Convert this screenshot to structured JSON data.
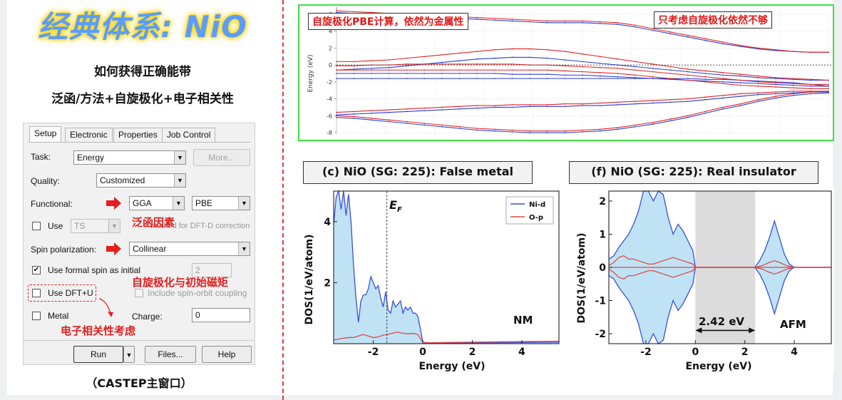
{
  "title": "经典体系: NiO",
  "subtitle1": "如何获得正确能带",
  "subtitle2": "泛函/方法+自旋极化+电子相关性",
  "castep": {
    "tabs": [
      "Setup",
      "Electronic",
      "Properties",
      "Job Control"
    ],
    "task_label": "Task:",
    "task_value": "Energy",
    "more_button": "More...",
    "quality_label": "Quality:",
    "quality_value": "Customized",
    "functional_label": "Functional:",
    "functional_value": "GGA",
    "functional_variant": "PBE",
    "use_label": "Use",
    "use_value": "TS",
    "dftd_text": "method for DFT-D correction",
    "spin_label": "Spin polarization:",
    "spin_value": "Collinear",
    "formal_spin_label": "Use formal spin as initial",
    "formal_spin_value": "2",
    "dftu_label": "Use DFT+U",
    "soc_label": "Include spin-orbit coupling",
    "metal_label": "Metal",
    "charge_label": "Charge:",
    "charge_value": "0",
    "run_button": "Run",
    "files_button": "Files...",
    "help_button": "Help",
    "annot_functional": "泛函因素",
    "annot_spin": "自旋极化与初始磁矩",
    "annot_correlation": "电子相关性考虑",
    "colors": {
      "annotation": "#e02020"
    }
  },
  "caption": "（CASTEP主窗口）",
  "band": {
    "label_left": "自旋极化PBE计算，依然为金属性",
    "label_right": "只考虑自旋极化依然不够",
    "ylabel": "Energy (eV)",
    "yticks": [
      "6",
      "4",
      "2",
      "0",
      "-2",
      "-4",
      "-6",
      "-8"
    ],
    "chart_data": {
      "type": "line",
      "ylabel": "Energy (eV)",
      "ylim": [
        -8.5,
        6.5
      ],
      "x": [
        0,
        1,
        2,
        3,
        4,
        5,
        6,
        7,
        8,
        9,
        10,
        11,
        12,
        13,
        14,
        15,
        16,
        17,
        18,
        19,
        20,
        21,
        22,
        23,
        24,
        25,
        26,
        27,
        28
      ],
      "series": [
        {
          "color": "blue",
          "values": [
            6.2,
            6.1,
            6.0,
            5.9,
            5.8,
            5.7,
            5.6,
            5.5,
            5.4,
            5.3,
            5.2,
            5.1,
            5.0,
            5.0,
            5.0,
            4.9,
            4.8,
            4.5,
            4.1,
            3.7,
            3.3,
            2.9,
            2.5,
            2.2,
            1.9,
            1.7,
            1.6,
            1.5,
            1.5
          ]
        },
        {
          "color": "blue",
          "values": [
            -0.6,
            -0.5,
            -0.4,
            -0.3,
            -0.1,
            0.1,
            0.3,
            0.5,
            0.7,
            0.8,
            0.9,
            0.9,
            0.8,
            0.6,
            0.4,
            0.2,
            0.0,
            -0.2,
            -0.4,
            -0.6,
            -0.8,
            -1.0,
            -1.2,
            -1.3,
            -1.5,
            -1.6,
            -1.7,
            -1.8,
            -1.8
          ]
        },
        {
          "color": "blue",
          "values": [
            -1.0,
            -1.0,
            -1.0,
            -1.0,
            -1.0,
            -1.0,
            -1.0,
            -1.0,
            -1.0,
            -1.0,
            -1.1,
            -1.1,
            -1.1,
            -1.2,
            -1.2,
            -1.3,
            -1.4,
            -1.5,
            -1.6,
            -1.7,
            -1.8,
            -1.9,
            -2.0,
            -2.1,
            -2.2,
            -2.3,
            -2.4,
            -2.5,
            -2.5
          ]
        },
        {
          "color": "blue",
          "values": [
            -1.6,
            -1.6,
            -1.6,
            -1.6,
            -1.6,
            -1.6,
            -1.6,
            -1.6,
            -1.6,
            -1.6,
            -1.6,
            -1.6,
            -1.6,
            -1.6,
            -1.6,
            -1.6,
            -1.6,
            -1.6,
            -1.6,
            -1.6,
            -1.6,
            -1.7,
            -1.7,
            -1.8,
            -1.9,
            -2.0,
            -2.1,
            -2.3,
            -2.5
          ]
        },
        {
          "color": "blue",
          "values": [
            -5.9,
            -5.8,
            -5.7,
            -5.6,
            -5.5,
            -5.4,
            -5.3,
            -5.2,
            -5.1,
            -5.0,
            -5.0,
            -4.9,
            -4.9,
            -4.9,
            -4.8,
            -4.8,
            -4.7,
            -4.6,
            -4.5,
            -4.4,
            -4.3,
            -4.1,
            -3.9,
            -3.7,
            -3.5,
            -3.4,
            -3.3,
            -3.2,
            -3.2
          ]
        },
        {
          "color": "blue",
          "values": [
            -6.2,
            -6.3,
            -6.5,
            -6.7,
            -6.9,
            -7.1,
            -7.3,
            -7.5,
            -7.7,
            -7.8,
            -7.9,
            -8.0,
            -8.0,
            -8.0,
            -7.9,
            -7.8,
            -7.6,
            -7.3,
            -7.0,
            -6.6,
            -6.2,
            -5.7,
            -5.2,
            -4.8,
            -4.3,
            -3.9,
            -3.6,
            -3.4,
            -3.3
          ]
        },
        {
          "color": "red",
          "values": [
            6.4,
            6.3,
            6.2,
            6.1,
            6.0,
            5.9,
            5.8,
            5.7,
            5.6,
            5.5,
            5.4,
            5.3,
            5.2,
            5.2,
            5.2,
            5.1,
            5.0,
            4.7,
            4.3,
            3.9,
            3.5,
            3.1,
            2.7,
            2.3,
            2.0,
            1.8,
            1.6,
            1.5,
            1.5
          ]
        },
        {
          "color": "red",
          "values": [
            0.4,
            0.4,
            0.5,
            0.6,
            0.8,
            1.0,
            1.2,
            1.4,
            1.6,
            1.8,
            1.9,
            1.9,
            1.8,
            1.6,
            1.3,
            1.0,
            0.7,
            0.4,
            0.1,
            -0.2,
            -0.5,
            -0.7,
            -0.9,
            -1.1,
            -1.3,
            -1.5,
            -1.6,
            -1.7,
            -1.8
          ]
        },
        {
          "color": "red",
          "values": [
            -0.1,
            -0.1,
            0.0,
            0.0,
            0.1,
            0.1,
            0.1,
            0.1,
            0.1,
            0.1,
            0.1,
            0.0,
            0.0,
            -0.1,
            -0.2,
            -0.3,
            -0.4,
            -0.6,
            -0.8,
            -1.0,
            -1.2,
            -1.4,
            -1.6,
            -1.8,
            -2.0,
            -2.1,
            -2.2,
            -2.3,
            -2.3
          ]
        },
        {
          "color": "red",
          "values": [
            -0.6,
            -0.6,
            -0.6,
            -0.6,
            -0.6,
            -0.6,
            -0.6,
            -0.6,
            -0.6,
            -0.6,
            -0.6,
            -0.6,
            -0.6,
            -0.7,
            -0.8,
            -0.9,
            -1.0,
            -1.2,
            -1.4,
            -1.6,
            -1.8,
            -2.0,
            -2.2,
            -2.4,
            -2.5,
            -2.6,
            -2.7,
            -2.8,
            -2.8
          ]
        },
        {
          "color": "red",
          "values": [
            -5.6,
            -5.5,
            -5.4,
            -5.3,
            -5.2,
            -5.1,
            -5.0,
            -4.9,
            -4.8,
            -4.8,
            -4.7,
            -4.7,
            -4.7,
            -4.6,
            -4.6,
            -4.5,
            -4.4,
            -4.3,
            -4.2,
            -4.1,
            -4.0,
            -3.8,
            -3.6,
            -3.4,
            -3.3,
            -3.2,
            -3.1,
            -3.1,
            -3.1
          ]
        },
        {
          "color": "red",
          "values": [
            -6.0,
            -6.1,
            -6.3,
            -6.5,
            -6.7,
            -6.9,
            -7.1,
            -7.3,
            -7.5,
            -7.6,
            -7.7,
            -7.8,
            -7.8,
            -7.8,
            -7.7,
            -7.6,
            -7.4,
            -7.1,
            -6.8,
            -6.4,
            -6.0,
            -5.5,
            -5.0,
            -4.6,
            -4.1,
            -3.7,
            -3.4,
            -3.2,
            -3.1
          ]
        }
      ]
    }
  },
  "dos_c": {
    "header": "(c) NiO (SG: 225): False metal",
    "ylabel": "DOS(1/eV/atom)",
    "xlabel": "Energy (eV)",
    "ef_label": "E",
    "ef_sub": "F",
    "tag": "NM",
    "xticks": [
      "-2",
      "0",
      "2",
      "4"
    ],
    "yticks": [
      "2",
      "4"
    ],
    "legend": [
      "Ni-d",
      "O-p"
    ],
    "chart_data": {
      "type": "area",
      "xlabel": "Energy (eV)",
      "ylabel": "DOS(1/eV/atom)",
      "xlim": [
        -3.6,
        5.5
      ],
      "ylim": [
        0,
        5.0
      ],
      "ef": -1.45,
      "series": [
        {
          "name": "Ni-d",
          "color": "#3a4fd8",
          "x": [
            -3.6,
            -3.5,
            -3.4,
            -3.3,
            -3.2,
            -3.1,
            -3.0,
            -2.9,
            -2.8,
            -2.7,
            -2.6,
            -2.5,
            -2.4,
            -2.3,
            -2.2,
            -2.1,
            -2.0,
            -1.9,
            -1.8,
            -1.7,
            -1.6,
            -1.5,
            -1.4,
            -1.3,
            -1.2,
            -1.1,
            -1.0,
            -0.9,
            -0.8,
            -0.7,
            -0.6,
            -0.5,
            -0.4,
            -0.3,
            -0.2,
            -0.1,
            0.0,
            0.1,
            0.5,
            1.0,
            2.0,
            3.0,
            4.0,
            5.5
          ],
          "values": [
            3.9,
            4.8,
            5.0,
            4.4,
            5.0,
            4.2,
            4.9,
            4.0,
            2.6,
            1.5,
            0.7,
            1.4,
            1.6,
            1.6,
            1.8,
            2.2,
            2.0,
            1.8,
            1.9,
            1.5,
            1.2,
            1.7,
            1.1,
            1.0,
            1.4,
            1.2,
            1.3,
            1.4,
            1.0,
            1.2,
            1.1,
            1.2,
            1.0,
            1.0,
            0.9,
            0.5,
            0.05,
            0.02,
            0.02,
            0.02,
            0.03,
            0.03,
            0.04,
            0.05
          ]
        },
        {
          "name": "O-p",
          "color": "#e04848",
          "x": [
            -3.6,
            -3.4,
            -3.2,
            -3.0,
            -2.8,
            -2.6,
            -2.4,
            -2.2,
            -2.0,
            -1.8,
            -1.6,
            -1.4,
            -1.2,
            -1.0,
            -0.8,
            -0.6,
            -0.4,
            -0.2,
            0.0,
            0.2,
            1.0,
            2.0,
            3.0,
            4.0,
            5.5
          ],
          "values": [
            0.12,
            0.15,
            0.18,
            0.2,
            0.2,
            0.25,
            0.3,
            0.25,
            0.2,
            0.22,
            0.28,
            0.3,
            0.35,
            0.38,
            0.34,
            0.32,
            0.34,
            0.3,
            0.05,
            0.03,
            0.04,
            0.05,
            0.06,
            0.07,
            0.08
          ]
        }
      ]
    }
  },
  "dos_f": {
    "header": "(f) NiO (SG: 225): Real insulator",
    "ylabel": "DOS(1/eV/atom)",
    "xlabel": "Energy (eV)",
    "gap_label": "2.42 eV",
    "tag": "AFM",
    "xticks": [
      "-2",
      "0",
      "2",
      "4"
    ],
    "yticks": [
      "2",
      "1",
      "0",
      "-1",
      "-2"
    ],
    "chart_data": {
      "type": "area",
      "xlabel": "Energy (eV)",
      "ylabel": "DOS(1/eV/atom)",
      "xlim": [
        -3.5,
        5.5
      ],
      "ylim": [
        -2.3,
        2.3
      ],
      "gap": [
        0.0,
        2.42
      ],
      "series": [
        {
          "name": "Ni-d",
          "color": "#3a4fd8",
          "x": [
            -3.5,
            -3.3,
            -3.1,
            -2.9,
            -2.7,
            -2.5,
            -2.3,
            -2.1,
            -1.9,
            -1.7,
            -1.5,
            -1.3,
            -1.1,
            -0.9,
            -0.7,
            -0.5,
            -0.3,
            -0.1,
            0.0,
            2.4,
            2.6,
            2.8,
            3.0,
            3.2,
            3.4,
            3.6,
            3.8,
            4.0,
            5.5
          ],
          "values": [
            0.25,
            0.35,
            0.6,
            0.8,
            1.0,
            1.3,
            1.7,
            2.5,
            2.8,
            2.0,
            2.6,
            2.2,
            1.5,
            1.0,
            1.3,
            1.1,
            0.8,
            0.5,
            0.0,
            0.0,
            0.2,
            0.5,
            0.9,
            1.4,
            0.9,
            0.4,
            0.1,
            0.0,
            0.0
          ]
        },
        {
          "name": "O-p",
          "color": "#e04848",
          "x": [
            -3.5,
            -3.3,
            -3.1,
            -2.9,
            -2.7,
            -2.5,
            -2.3,
            -2.1,
            -1.9,
            -1.7,
            -1.5,
            -1.3,
            -1.1,
            -0.9,
            -0.7,
            -0.5,
            -0.3,
            -0.1,
            0.0,
            2.4,
            2.7,
            3.0,
            3.2,
            3.4,
            3.7,
            4.0,
            5.5
          ],
          "values": [
            0.05,
            0.15,
            0.3,
            0.35,
            0.25,
            0.25,
            0.2,
            0.15,
            0.1,
            0.1,
            0.15,
            0.2,
            0.25,
            0.3,
            0.25,
            0.2,
            0.15,
            0.1,
            0.0,
            0.0,
            0.05,
            0.15,
            0.2,
            0.15,
            0.05,
            0.0,
            0.0
          ]
        }
      ]
    }
  }
}
